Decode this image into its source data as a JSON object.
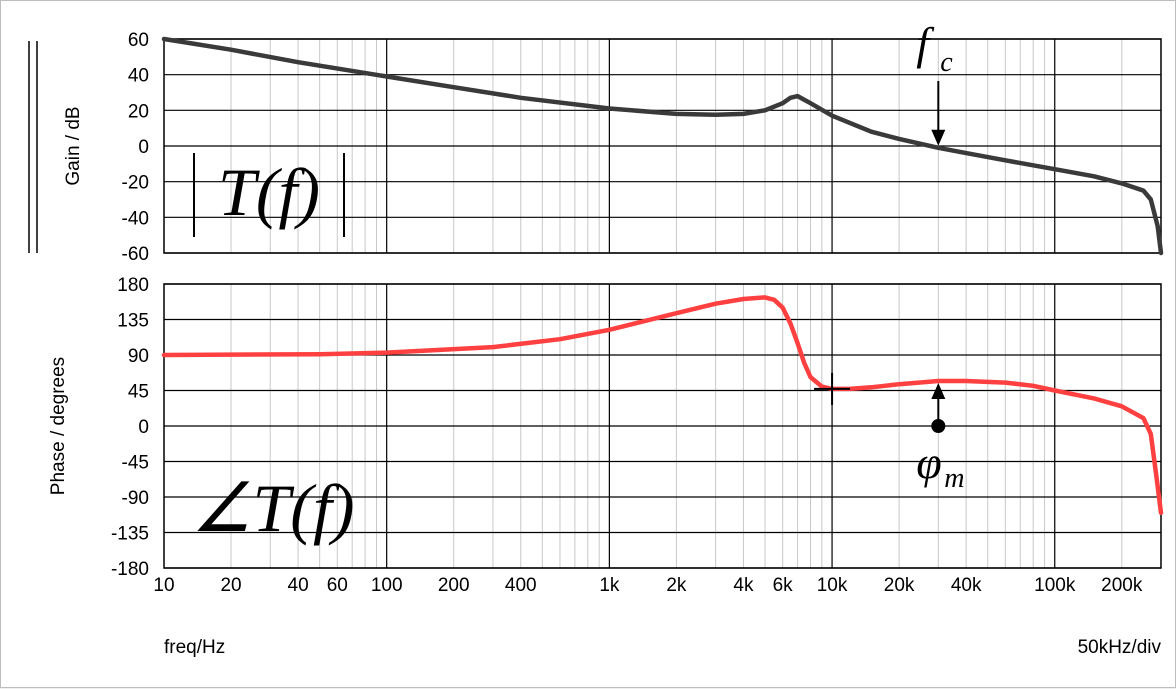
{
  "chart_data": [
    {
      "type": "line",
      "panel": "gain",
      "ylabel": "Gain / dB",
      "ylim": [
        -60,
        60
      ],
      "yticks": [
        "60",
        "40",
        "20",
        "0",
        "-20",
        "-40",
        "-60"
      ],
      "xscale": "log",
      "xlim": [
        10,
        300000
      ],
      "grid": true,
      "series": [
        {
          "color": "#3a3a3a",
          "x": [
            10,
            20,
            40,
            100,
            200,
            400,
            1000,
            2000,
            3000,
            4000,
            5000,
            6000,
            6500,
            7000,
            8000,
            10000,
            15000,
            20000,
            30000,
            40000,
            60000,
            100000,
            150000,
            200000,
            250000,
            270000,
            290000,
            300000
          ],
          "y": [
            60,
            54,
            47,
            39,
            33,
            27,
            21,
            18,
            17.5,
            18,
            20,
            24,
            27,
            28,
            24,
            17,
            8,
            4,
            -1,
            -4,
            -8,
            -13,
            -17,
            -21,
            -25,
            -30,
            -45,
            -60
          ]
        }
      ],
      "annotations": [
        {
          "label": "f",
          "sub": "c",
          "x": 30000,
          "y": -1,
          "arrow": "down"
        },
        {
          "label": "|T(f)|"
        }
      ]
    },
    {
      "type": "line",
      "panel": "phase",
      "ylabel": "Phase / degrees",
      "ylim": [
        -180,
        180
      ],
      "yticks": [
        "180",
        "135",
        "90",
        "45",
        "0",
        "-45",
        "-90",
        "-135",
        "-180"
      ],
      "xscale": "log",
      "xlim": [
        10,
        300000
      ],
      "grid": true,
      "xticks": [
        {
          "label": "10",
          "v": 10
        },
        {
          "label": "20",
          "v": 20
        },
        {
          "label": "40",
          "v": 40
        },
        {
          "label": "60",
          "v": 60
        },
        {
          "label": "100",
          "v": 100
        },
        {
          "label": "200",
          "v": 200
        },
        {
          "label": "400",
          "v": 400
        },
        {
          "label": "1k",
          "v": 1000
        },
        {
          "label": "2k",
          "v": 2000
        },
        {
          "label": "4k",
          "v": 4000
        },
        {
          "label": "6k",
          "v": 6000
        },
        {
          "label": "10k",
          "v": 10000
        },
        {
          "label": "20k",
          "v": 20000
        },
        {
          "label": "40k",
          "v": 40000
        },
        {
          "label": "100k",
          "v": 100000
        },
        {
          "label": "200k",
          "v": 200000
        }
      ],
      "series": [
        {
          "color": "#ff4040",
          "x": [
            10,
            50,
            100,
            300,
            600,
            1000,
            2000,
            3000,
            4000,
            5000,
            5500,
            6000,
            6500,
            7000,
            7500,
            8000,
            9000,
            10000,
            12000,
            15000,
            20000,
            30000,
            40000,
            60000,
            80000,
            100000,
            150000,
            200000,
            250000,
            270000,
            285000,
            300000
          ],
          "y": [
            90,
            91,
            93,
            100,
            110,
            122,
            143,
            155,
            161,
            163,
            160,
            150,
            130,
            105,
            80,
            62,
            50,
            47,
            47,
            49,
            53,
            57,
            57,
            55,
            51,
            45,
            35,
            25,
            10,
            -10,
            -60,
            -110
          ]
        }
      ],
      "annotations": [
        {
          "label": "φ",
          "sub": "m",
          "x": 30000,
          "y": 0,
          "arrow": "up"
        },
        {
          "label": "∠T(f)"
        }
      ]
    }
  ],
  "footer": {
    "left": "freq/Hz",
    "right": "50kHz/div"
  }
}
